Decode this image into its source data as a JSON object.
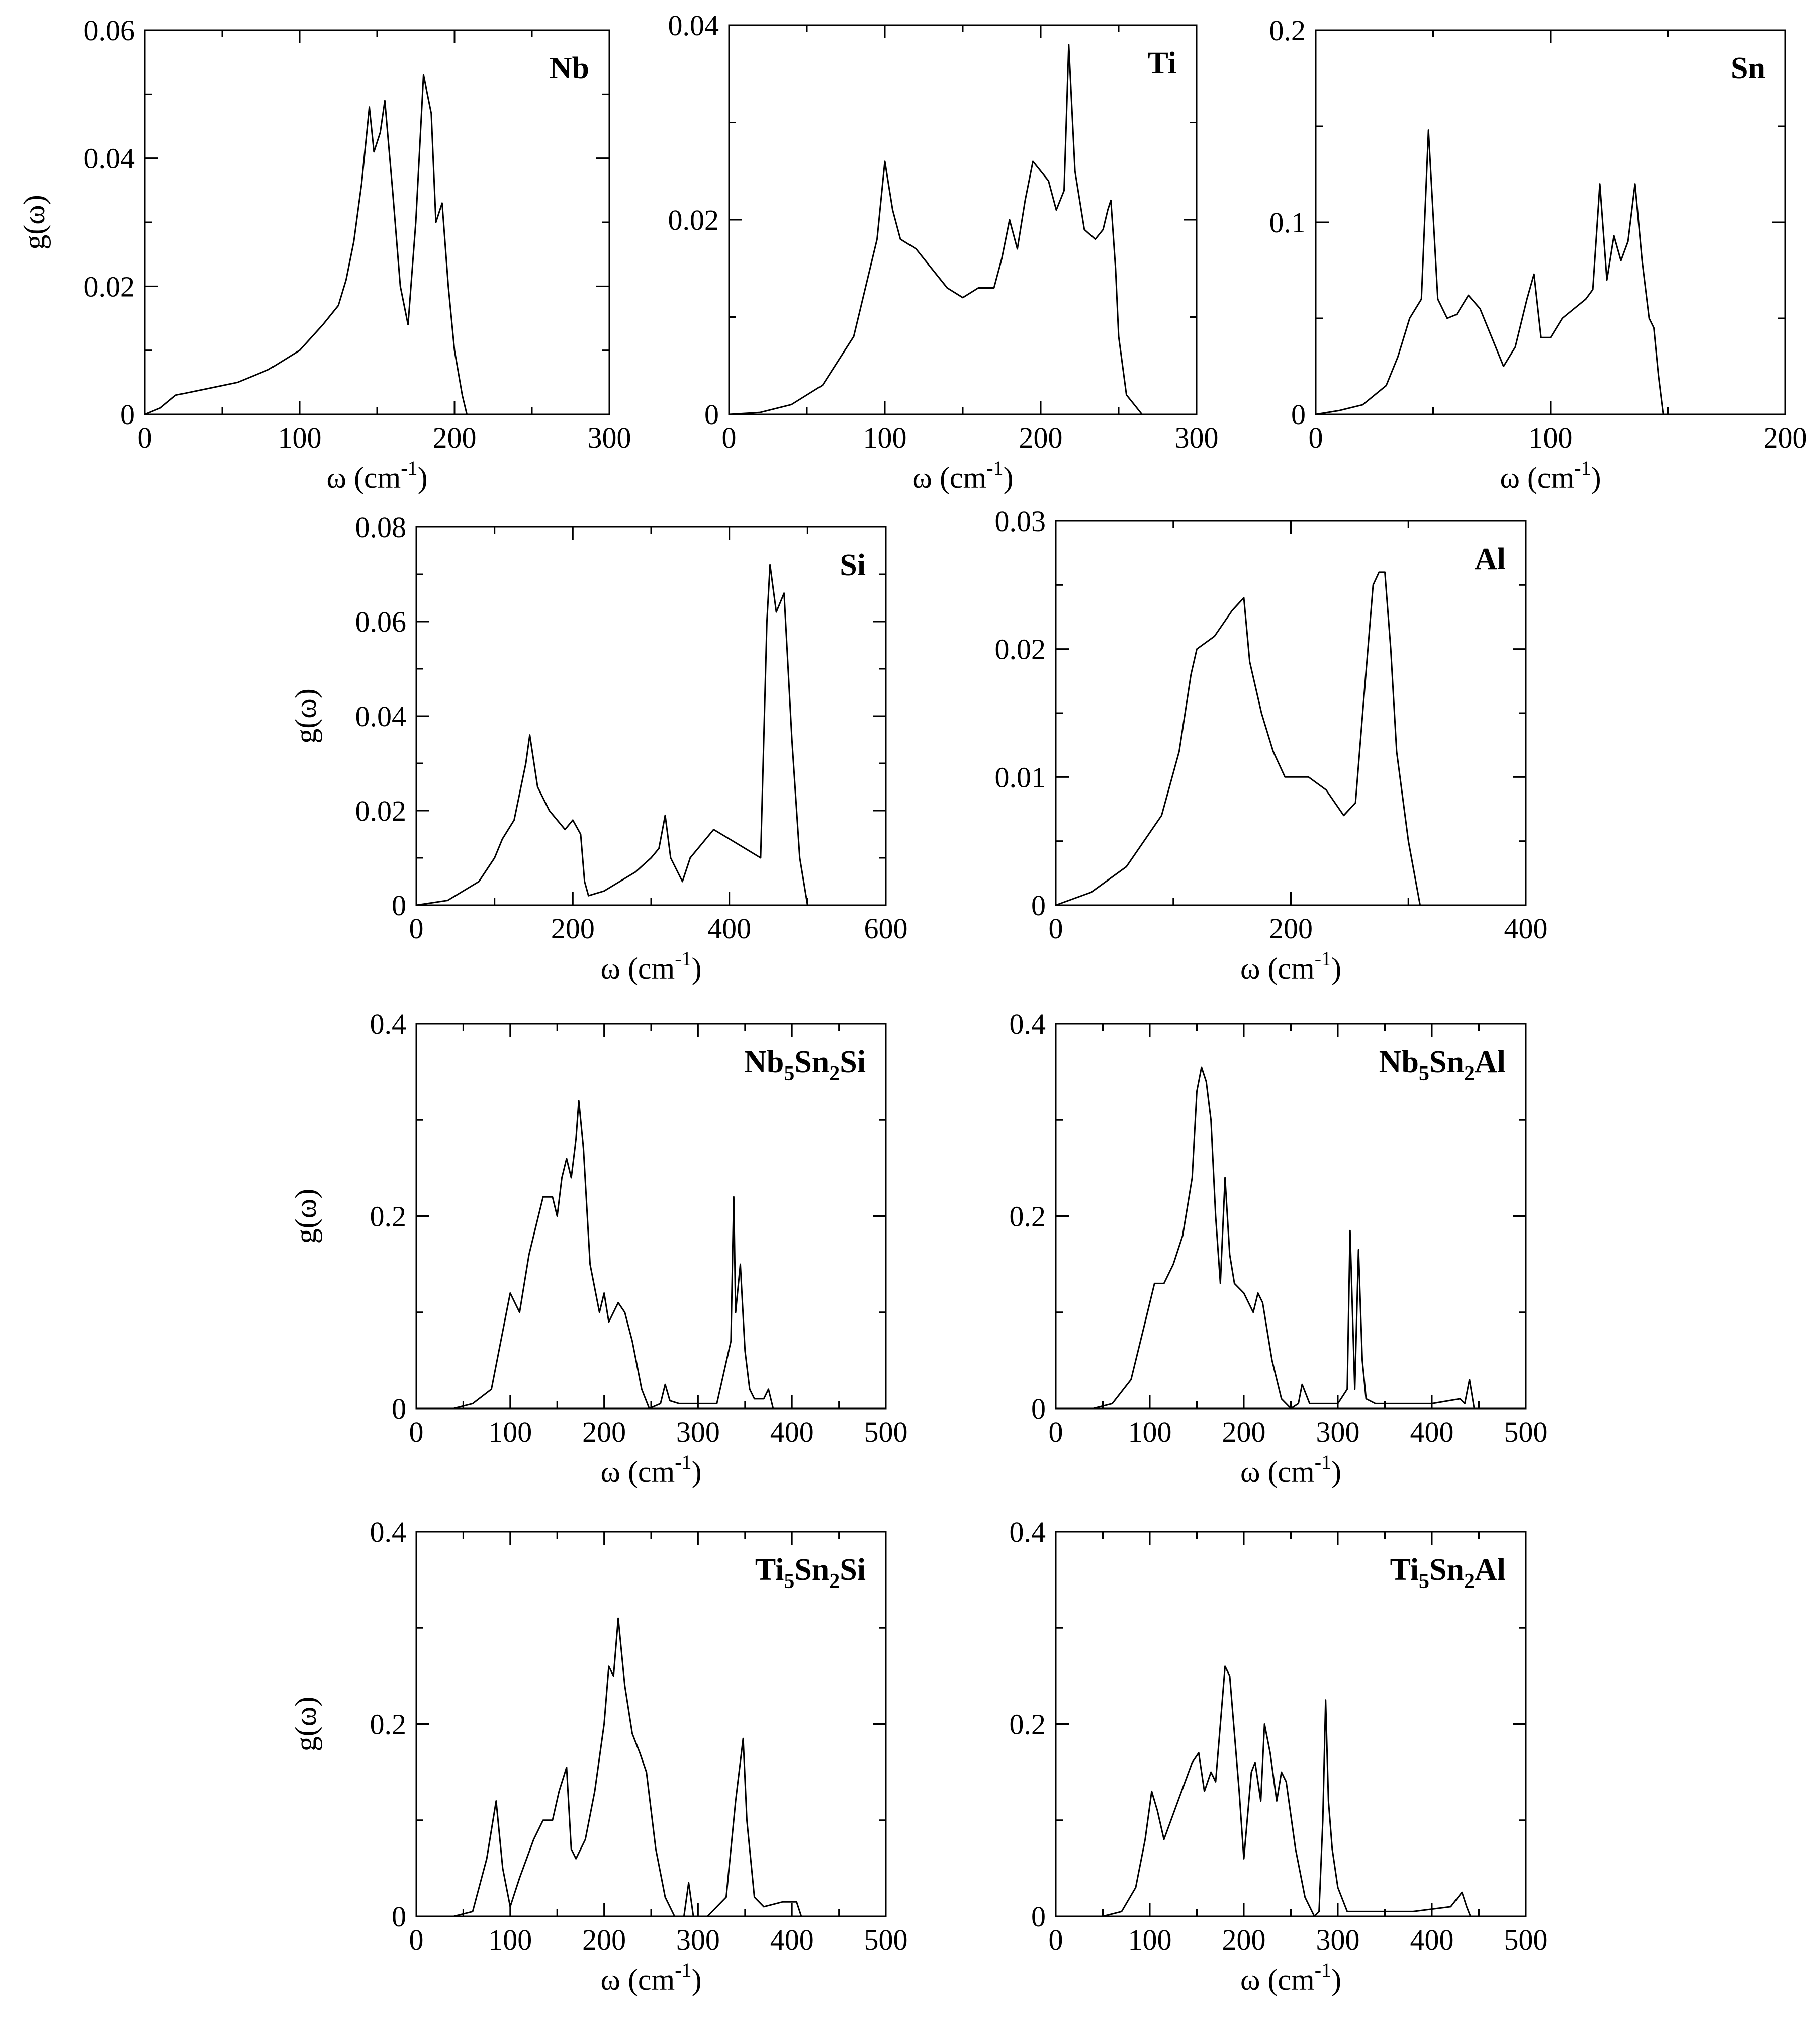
{
  "figure": {
    "xlabel": "ω (cm",
    "xlabel_exp": "-1",
    "xlabel_close": ")",
    "ylabel": "g(ω)"
  },
  "chart_data": [
    {
      "type": "line",
      "label": "Nb",
      "label_parts": [
        {
          "t": "Nb"
        }
      ],
      "xlabel": "ω (cm-1)",
      "ylabel": "g(ω)",
      "xlim": [
        0,
        300
      ],
      "ylim": [
        0,
        0.06
      ],
      "xticks": [
        0,
        100,
        200,
        300
      ],
      "yticks": [
        0,
        0.02,
        0.04,
        0.06
      ],
      "ytick_labels": [
        "0",
        "0.02",
        "0.04",
        "0.06"
      ],
      "x": [
        0,
        10,
        20,
        40,
        60,
        80,
        100,
        115,
        125,
        130,
        135,
        140,
        145,
        148,
        152,
        155,
        160,
        165,
        170,
        175,
        180,
        185,
        188,
        192,
        196,
        200,
        205,
        208
      ],
      "y": [
        0,
        0.001,
        0.003,
        0.004,
        0.005,
        0.007,
        0.01,
        0.014,
        0.017,
        0.021,
        0.027,
        0.036,
        0.048,
        0.041,
        0.044,
        0.049,
        0.035,
        0.02,
        0.014,
        0.03,
        0.053,
        0.047,
        0.03,
        0.033,
        0.02,
        0.01,
        0.003,
        0
      ]
    },
    {
      "type": "line",
      "label": "Ti",
      "label_parts": [
        {
          "t": "Ti"
        }
      ],
      "xlabel": "ω (cm-1)",
      "ylabel": "g(ω)",
      "xlim": [
        0,
        300
      ],
      "ylim": [
        0,
        0.04
      ],
      "xticks": [
        0,
        100,
        200,
        300
      ],
      "yticks": [
        0,
        0.02,
        0.04
      ],
      "ytick_labels": [
        "0",
        "0.02",
        "0.04"
      ],
      "x": [
        0,
        20,
        40,
        60,
        80,
        95,
        100,
        105,
        110,
        120,
        130,
        140,
        150,
        160,
        170,
        175,
        180,
        185,
        190,
        195,
        200,
        205,
        210,
        215,
        218,
        222,
        228,
        235,
        240,
        243,
        245,
        248,
        250,
        255,
        260,
        265
      ],
      "y": [
        0,
        0.0002,
        0.001,
        0.003,
        0.008,
        0.018,
        0.026,
        0.021,
        0.018,
        0.017,
        0.015,
        0.013,
        0.012,
        0.013,
        0.013,
        0.016,
        0.02,
        0.017,
        0.022,
        0.026,
        0.025,
        0.024,
        0.021,
        0.023,
        0.038,
        0.025,
        0.019,
        0.018,
        0.019,
        0.021,
        0.022,
        0.015,
        0.008,
        0.002,
        0.001,
        0
      ]
    },
    {
      "type": "line",
      "label": "Sn",
      "label_parts": [
        {
          "t": "Sn"
        }
      ],
      "xlabel": "ω (cm-1)",
      "ylabel": "g(ω)",
      "xlim": [
        0,
        200
      ],
      "ylim": [
        0,
        0.2
      ],
      "xticks": [
        0,
        100,
        200
      ],
      "yticks": [
        0,
        0.1,
        0.2
      ],
      "ytick_labels": [
        "0",
        "0.1",
        "0.2"
      ],
      "x": [
        0,
        10,
        20,
        30,
        35,
        40,
        45,
        48,
        52,
        56,
        60,
        65,
        70,
        75,
        80,
        85,
        90,
        93,
        96,
        100,
        105,
        110,
        115,
        118,
        121,
        124,
        127,
        130,
        133,
        136,
        139,
        142,
        144,
        146,
        148
      ],
      "y": [
        0,
        0.002,
        0.005,
        0.015,
        0.03,
        0.05,
        0.06,
        0.148,
        0.06,
        0.05,
        0.052,
        0.062,
        0.055,
        0.04,
        0.025,
        0.035,
        0.06,
        0.073,
        0.04,
        0.04,
        0.05,
        0.055,
        0.06,
        0.065,
        0.12,
        0.07,
        0.093,
        0.08,
        0.09,
        0.12,
        0.08,
        0.05,
        0.045,
        0.02,
        0
      ]
    },
    {
      "type": "line",
      "label": "Si",
      "label_parts": [
        {
          "t": "Si"
        }
      ],
      "xlabel": "ω (cm-1)",
      "ylabel": "g(ω)",
      "xlim": [
        0,
        600
      ],
      "ylim": [
        0,
        0.08
      ],
      "xticks": [
        0,
        200,
        400,
        600
      ],
      "yticks": [
        0,
        0.02,
        0.04,
        0.06,
        0.08
      ],
      "ytick_labels": [
        "0",
        "0.02",
        "0.04",
        "0.06",
        "0.08"
      ],
      "x": [
        0,
        40,
        80,
        100,
        110,
        125,
        140,
        145,
        155,
        170,
        190,
        200,
        210,
        215,
        220,
        240,
        260,
        280,
        300,
        310,
        318,
        325,
        340,
        350,
        365,
        380,
        400,
        420,
        440,
        448,
        452,
        460,
        470,
        480,
        490,
        500
      ],
      "y": [
        0,
        0.001,
        0.005,
        0.01,
        0.014,
        0.018,
        0.03,
        0.036,
        0.025,
        0.02,
        0.016,
        0.018,
        0.015,
        0.005,
        0.002,
        0.003,
        0.005,
        0.007,
        0.01,
        0.012,
        0.019,
        0.01,
        0.005,
        0.01,
        0.013,
        0.016,
        0.014,
        0.012,
        0.01,
        0.06,
        0.072,
        0.062,
        0.066,
        0.035,
        0.01,
        0
      ]
    },
    {
      "type": "line",
      "label": "Al",
      "label_parts": [
        {
          "t": "Al"
        }
      ],
      "xlabel": "ω (cm-1)",
      "ylabel": "g(ω)",
      "xlim": [
        0,
        400
      ],
      "ylim": [
        0,
        0.03
      ],
      "xticks": [
        0,
        200,
        400
      ],
      "yticks": [
        0,
        0.01,
        0.02,
        0.03
      ],
      "ytick_labels": [
        "0",
        "0.01",
        "0.02",
        "0.03"
      ],
      "x": [
        0,
        30,
        60,
        90,
        105,
        115,
        120,
        135,
        150,
        160,
        165,
        175,
        185,
        195,
        200,
        215,
        230,
        245,
        255,
        262,
        270,
        275,
        280,
        285,
        290,
        300,
        310
      ],
      "y": [
        0,
        0.001,
        0.003,
        0.007,
        0.012,
        0.018,
        0.02,
        0.021,
        0.023,
        0.024,
        0.019,
        0.015,
        0.012,
        0.01,
        0.01,
        0.01,
        0.009,
        0.007,
        0.008,
        0.016,
        0.025,
        0.026,
        0.026,
        0.02,
        0.012,
        0.005,
        0
      ]
    },
    {
      "type": "line",
      "label": "Nb5Sn2Si",
      "label_parts": [
        {
          "t": "Nb"
        },
        {
          "t": "5",
          "sub": true
        },
        {
          "t": "Sn"
        },
        {
          "t": "2",
          "sub": true
        },
        {
          "t": "Si"
        }
      ],
      "xlabel": "ω (cm-1)",
      "ylabel": "g(ω)",
      "xlim": [
        0,
        500
      ],
      "ylim": [
        0,
        0.4
      ],
      "xticks": [
        0,
        100,
        200,
        300,
        400,
        500
      ],
      "yticks": [
        0,
        0.2,
        0.4
      ],
      "ytick_labels": [
        "0",
        "0.2",
        "0.4"
      ],
      "x": [
        40,
        60,
        80,
        90,
        100,
        105,
        110,
        120,
        135,
        145,
        150,
        155,
        160,
        165,
        170,
        173,
        178,
        185,
        195,
        200,
        205,
        215,
        222,
        230,
        240,
        248,
        260,
        265,
        270,
        280,
        300,
        320,
        335,
        338,
        340,
        345,
        350,
        355,
        360,
        370,
        375,
        380
      ],
      "y": [
        0,
        0.005,
        0.02,
        0.07,
        0.12,
        0.11,
        0.1,
        0.16,
        0.22,
        0.22,
        0.2,
        0.24,
        0.26,
        0.24,
        0.28,
        0.32,
        0.27,
        0.15,
        0.1,
        0.12,
        0.09,
        0.11,
        0.1,
        0.07,
        0.02,
        0,
        0.005,
        0.025,
        0.008,
        0.005,
        0.005,
        0.005,
        0.07,
        0.22,
        0.1,
        0.15,
        0.06,
        0.02,
        0.01,
        0.01,
        0.02,
        0
      ]
    },
    {
      "type": "line",
      "label": "Nb5Sn2Al",
      "label_parts": [
        {
          "t": "Nb"
        },
        {
          "t": "5",
          "sub": true
        },
        {
          "t": "Sn"
        },
        {
          "t": "2",
          "sub": true
        },
        {
          "t": "Al"
        }
      ],
      "xlabel": "ω (cm-1)",
      "ylabel": "g(ω)",
      "xlim": [
        0,
        500
      ],
      "ylim": [
        0,
        0.4
      ],
      "xticks": [
        0,
        100,
        200,
        300,
        400,
        500
      ],
      "yticks": [
        0,
        0.2,
        0.4
      ],
      "ytick_labels": [
        "0",
        "0.2",
        "0.4"
      ],
      "x": [
        40,
        60,
        80,
        95,
        105,
        115,
        125,
        135,
        145,
        150,
        155,
        160,
        165,
        170,
        175,
        180,
        185,
        190,
        200,
        210,
        215,
        220,
        230,
        240,
        250,
        258,
        262,
        270,
        300,
        310,
        313,
        318,
        322,
        326,
        330,
        340,
        360,
        400,
        430,
        435,
        440,
        445
      ],
      "y": [
        0,
        0.005,
        0.03,
        0.09,
        0.13,
        0.13,
        0.15,
        0.18,
        0.24,
        0.33,
        0.355,
        0.34,
        0.3,
        0.2,
        0.13,
        0.24,
        0.16,
        0.13,
        0.12,
        0.1,
        0.12,
        0.11,
        0.05,
        0.01,
        0,
        0.005,
        0.025,
        0.005,
        0.005,
        0.02,
        0.185,
        0.02,
        0.165,
        0.05,
        0.01,
        0.005,
        0.005,
        0.005,
        0.01,
        0.005,
        0.03,
        0
      ]
    },
    {
      "type": "line",
      "label": "Ti5Sn2Si",
      "label_parts": [
        {
          "t": "Ti"
        },
        {
          "t": "5",
          "sub": true
        },
        {
          "t": "Sn"
        },
        {
          "t": "2",
          "sub": true
        },
        {
          "t": "Si"
        }
      ],
      "xlabel": "ω (cm-1)",
      "ylabel": "g(ω)",
      "xlim": [
        0,
        500
      ],
      "ylim": [
        0,
        0.4
      ],
      "xticks": [
        0,
        100,
        200,
        300,
        400,
        500
      ],
      "yticks": [
        0,
        0.2,
        0.4
      ],
      "ytick_labels": [
        "0",
        "0.2",
        "0.4"
      ],
      "x": [
        40,
        60,
        75,
        85,
        92,
        100,
        110,
        125,
        135,
        145,
        152,
        160,
        165,
        170,
        180,
        190,
        200,
        205,
        210,
        215,
        222,
        230,
        238,
        245,
        255,
        265,
        275,
        285,
        290,
        295,
        310,
        330,
        340,
        348,
        352,
        360,
        370,
        390,
        405,
        410
      ],
      "y": [
        0,
        0.005,
        0.06,
        0.12,
        0.05,
        0.01,
        0.04,
        0.08,
        0.1,
        0.1,
        0.13,
        0.155,
        0.07,
        0.06,
        0.08,
        0.13,
        0.2,
        0.26,
        0.25,
        0.31,
        0.24,
        0.19,
        0.17,
        0.15,
        0.07,
        0.02,
        0,
        0,
        0.035,
        0,
        0,
        0.02,
        0.12,
        0.185,
        0.1,
        0.02,
        0.01,
        0.015,
        0.015,
        0
      ]
    },
    {
      "type": "line",
      "label": "Ti5Sn2Al",
      "label_parts": [
        {
          "t": "Ti"
        },
        {
          "t": "5",
          "sub": true
        },
        {
          "t": "Sn"
        },
        {
          "t": "2",
          "sub": true
        },
        {
          "t": "Al"
        }
      ],
      "xlabel": "ω (cm-1)",
      "ylabel": "g(ω)",
      "xlim": [
        0,
        500
      ],
      "ylim": [
        0,
        0.4
      ],
      "xticks": [
        0,
        100,
        200,
        300,
        400,
        500
      ],
      "yticks": [
        0,
        0.2,
        0.4
      ],
      "ytick_labels": [
        "0",
        "0.2",
        "0.4"
      ],
      "x": [
        50,
        70,
        85,
        95,
        102,
        108,
        115,
        130,
        145,
        152,
        158,
        165,
        170,
        175,
        180,
        185,
        190,
        195,
        200,
        208,
        212,
        218,
        222,
        228,
        235,
        240,
        245,
        255,
        265,
        275,
        280,
        284,
        287,
        290,
        294,
        300,
        310,
        330,
        380,
        420,
        432,
        437,
        441
      ],
      "y": [
        0,
        0.005,
        0.03,
        0.08,
        0.13,
        0.11,
        0.08,
        0.12,
        0.16,
        0.17,
        0.13,
        0.15,
        0.14,
        0.2,
        0.26,
        0.25,
        0.19,
        0.13,
        0.06,
        0.15,
        0.16,
        0.12,
        0.2,
        0.17,
        0.12,
        0.15,
        0.14,
        0.07,
        0.02,
        0,
        0.005,
        0.1,
        0.225,
        0.12,
        0.07,
        0.03,
        0.005,
        0.005,
        0.005,
        0.01,
        0.025,
        0.01,
        0
      ]
    }
  ]
}
